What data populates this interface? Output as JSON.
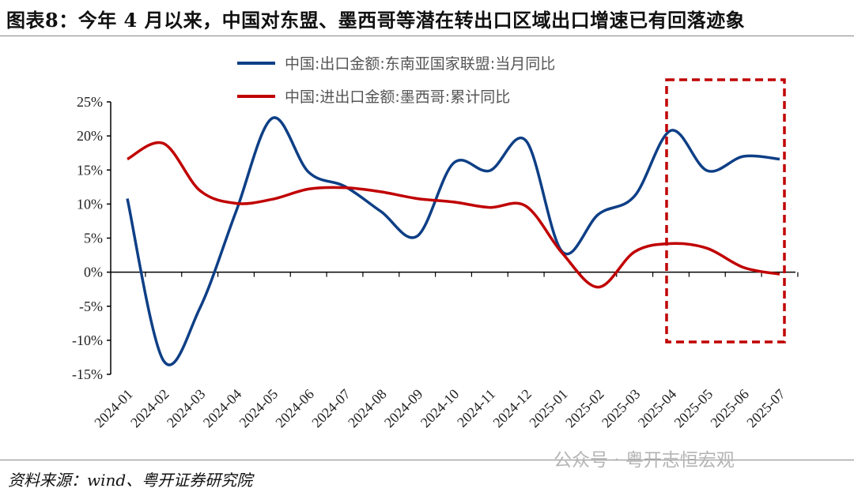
{
  "title": "图表8：今年 4 月以来，中国对东盟、墨西哥等潜在转出口区域出口增速已有回落迹象",
  "source": "资料来源：wind、粤开证券研究院",
  "watermark": "公众号 · 粤开志恒宏观",
  "chart_data": {
    "type": "line",
    "title": "图表8：今年 4 月以来，中国对东盟、墨西哥等潜在转出口区域出口增速已有回落迹象",
    "xlabel": "",
    "ylabel": "",
    "ylim": [
      -15,
      25
    ],
    "yticks": [
      "25%",
      "20%",
      "15%",
      "10%",
      "5%",
      "0%",
      "-5%",
      "-10%",
      "-15%"
    ],
    "ytick_values": [
      25,
      20,
      15,
      10,
      5,
      0,
      -5,
      -10,
      -15
    ],
    "categories": [
      "2024-01",
      "2024-02",
      "2024-03",
      "2024-04",
      "2024-05",
      "2024-06",
      "2024-07",
      "2024-08",
      "2024-09",
      "2024-10",
      "2024-11",
      "2024-12",
      "2025-01",
      "2025-02",
      "2025-03",
      "2025-04",
      "2025-05",
      "2025-06",
      "2025-07"
    ],
    "legend_position": "top-center",
    "series": [
      {
        "name": "中国:出口金额:东南亚国家联盟:当月同比",
        "color": "#0e3f86",
        "values": [
          10.8,
          -13.0,
          -5.3,
          8.9,
          22.6,
          14.7,
          12.6,
          8.9,
          5.3,
          16.0,
          14.9,
          19.3,
          3.0,
          8.5,
          11.2,
          20.8,
          14.9,
          17.0,
          16.6
        ]
      },
      {
        "name": "中国:进出口金额:墨西哥:累计同比",
        "color": "#c00000",
        "values": [
          16.6,
          18.9,
          12.0,
          10.1,
          10.7,
          12.2,
          12.4,
          11.8,
          10.8,
          10.3,
          9.5,
          9.7,
          2.8,
          -2.2,
          3.0,
          4.2,
          3.5,
          0.7,
          -0.3
        ]
      }
    ],
    "annotation": "red dashed box highlighting 2025-04 to 2025-07"
  }
}
